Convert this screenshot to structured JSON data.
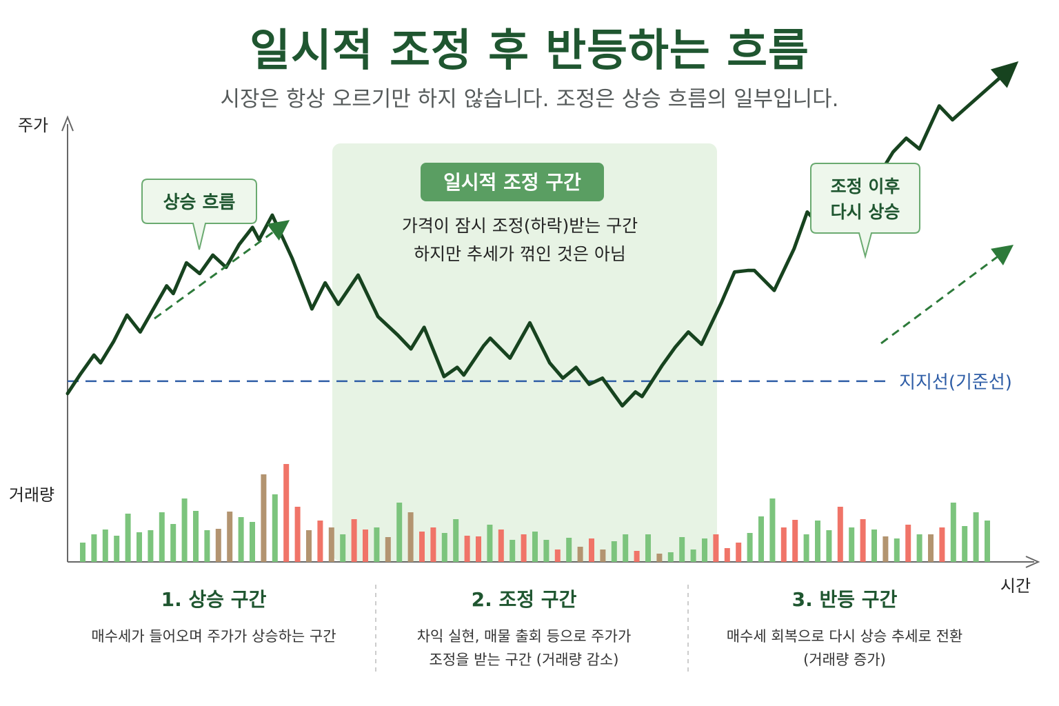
{
  "header": {
    "title": "일시적 조정 후 반등하는 흐름",
    "subtitle": "시장은 항상 오르기만 하지 않습니다. 조정은 상승 흐름의 일부입니다."
  },
  "chart_data": {
    "type": "line",
    "y_axis_label": "주가",
    "x_axis_label": "시간",
    "volume_label": "거래량",
    "support_line_label": "지지선(기준선)",
    "grid": false,
    "annotations": {
      "uptrend": "상승 흐름",
      "correction_title": "일시적 조정 구간",
      "correction_desc": [
        "가격이 잠시 조정(하락)받는 구간",
        "하지만 추세가 꺾인 것은 아님"
      ],
      "rebound": [
        "조정 이후",
        "다시 상승"
      ]
    },
    "price": [
      [
        0,
        0
      ],
      [
        2,
        13
      ],
      [
        4,
        25
      ],
      [
        5,
        20
      ],
      [
        7,
        34
      ],
      [
        9,
        51
      ],
      [
        11,
        40
      ],
      [
        13,
        55
      ],
      [
        15,
        70
      ],
      [
        16,
        65
      ],
      [
        18,
        85
      ],
      [
        20,
        78
      ],
      [
        22,
        90
      ],
      [
        24,
        82
      ],
      [
        26,
        97
      ],
      [
        28,
        108
      ],
      [
        29,
        100
      ],
      [
        31,
        116
      ],
      [
        34,
        88
      ],
      [
        36,
        66
      ],
      [
        37,
        55
      ],
      [
        39,
        72
      ],
      [
        41,
        58
      ],
      [
        44,
        77
      ],
      [
        47,
        50
      ],
      [
        50,
        38
      ],
      [
        52,
        29
      ],
      [
        54,
        43
      ],
      [
        57,
        11
      ],
      [
        59,
        17
      ],
      [
        60,
        12
      ],
      [
        63,
        31
      ],
      [
        64,
        36
      ],
      [
        67,
        23
      ],
      [
        70,
        46
      ],
      [
        73,
        20
      ],
      [
        75,
        10
      ],
      [
        77,
        17
      ],
      [
        79,
        6
      ],
      [
        81,
        10
      ],
      [
        84,
        -8
      ],
      [
        86,
        1
      ],
      [
        87,
        -2
      ],
      [
        90,
        18
      ],
      [
        92,
        30
      ],
      [
        94,
        40
      ],
      [
        96,
        32
      ],
      [
        99,
        59
      ],
      [
        101,
        79
      ],
      [
        103,
        80
      ],
      [
        104,
        80
      ],
      [
        107,
        67
      ],
      [
        110,
        94
      ],
      [
        112,
        118
      ],
      [
        114,
        109
      ],
      [
        116,
        121
      ],
      [
        118,
        129
      ],
      [
        120,
        124
      ],
      [
        123,
        143
      ],
      [
        125,
        157
      ],
      [
        127,
        166
      ],
      [
        129,
        159
      ],
      [
        132,
        187
      ],
      [
        134,
        178
      ]
    ],
    "price_end": [
      144,
      216
    ],
    "volume": {
      "values": [
        28,
        40,
        47,
        38,
        70,
        43,
        46,
        72,
        55,
        92,
        74,
        46,
        48,
        73,
        65,
        58,
        127,
        98,
        142,
        80,
        46,
        60,
        50,
        40,
        62,
        47,
        50,
        36,
        86,
        72,
        44,
        50,
        42,
        62,
        38,
        37,
        54,
        47,
        32,
        40,
        44,
        32,
        18,
        35,
        22,
        34,
        18,
        30,
        40,
        16,
        40,
        12,
        14,
        36,
        18,
        34,
        40,
        20,
        28,
        42,
        66,
        92,
        50,
        61,
        40,
        60,
        46,
        80,
        50,
        62,
        47,
        37,
        34,
        54,
        40,
        40,
        50,
        86,
        52,
        72,
        60
      ],
      "colors": [
        "g",
        "g",
        "g",
        "g",
        "g",
        "g",
        "g",
        "g",
        "g",
        "g",
        "g",
        "g",
        "o",
        "o",
        "g",
        "g",
        "o",
        "g",
        "r",
        "r",
        "o",
        "r",
        "o",
        "g",
        "r",
        "r",
        "g",
        "o",
        "g",
        "o",
        "r",
        "r",
        "g",
        "g",
        "r",
        "r",
        "g",
        "r",
        "g",
        "r",
        "g",
        "g",
        "r",
        "g",
        "o",
        "r",
        "o",
        "g",
        "g",
        "r",
        "g",
        "o",
        "g",
        "g",
        "g",
        "g",
        "r",
        "r",
        "r",
        "g",
        "g",
        "g",
        "r",
        "r",
        "g",
        "g",
        "g",
        "r",
        "g",
        "r",
        "g",
        "o",
        "g",
        "r",
        "g",
        "o",
        "r",
        "g",
        "g",
        "g",
        "g"
      ]
    },
    "ylim": [
      -40,
      220
    ],
    "xlim": [
      0,
      147
    ],
    "support_level": 8
  },
  "sections": [
    {
      "title": "1. 상승 구간",
      "desc": [
        "매수세가 들어오며 주가가 상승하는 구간"
      ]
    },
    {
      "title": "2. 조정 구간",
      "desc": [
        "차익 실현, 매물 출회 등으로 주가가",
        "조정을 받는 구간 (거래량 감소)"
      ]
    },
    {
      "title": "3. 반등 구간",
      "desc": [
        "매수세 회복으로 다시 상승 추세로 전환",
        "(거래량 증가)"
      ]
    }
  ],
  "colors": {
    "price_line": "#17431f",
    "support": "#2e5da6",
    "shade": "#e7f3e4",
    "label_box": "#5a9e62",
    "vol_green": "#7cc47d",
    "vol_red": "#f07468",
    "vol_olive": "#b39470",
    "dark_green": "#1f5630"
  }
}
